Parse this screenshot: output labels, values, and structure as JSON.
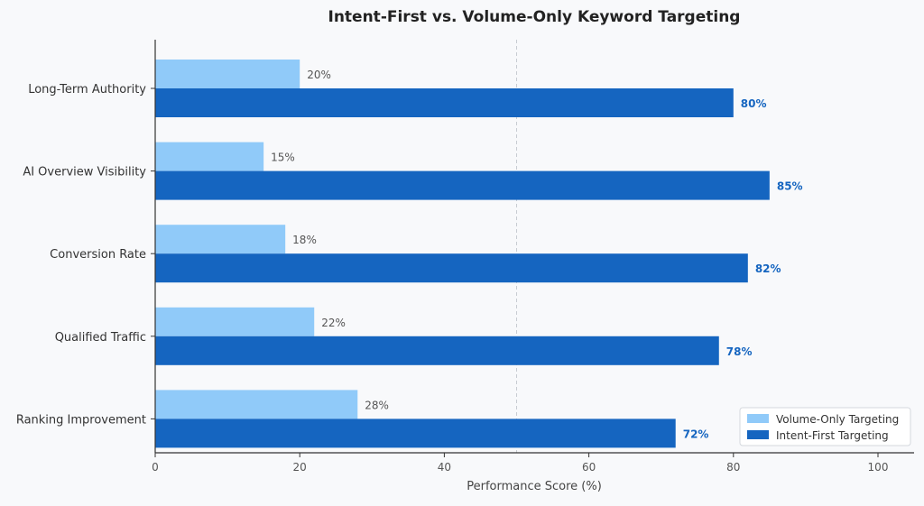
{
  "chart_data": {
    "type": "bar",
    "orientation": "horizontal",
    "title": "Intent-First vs. Volume-Only Keyword Targeting",
    "xlabel": "Performance Score (%)",
    "ylabel": "",
    "xlim": [
      0,
      100
    ],
    "xticks": [
      0,
      20,
      40,
      60,
      80,
      100
    ],
    "reference_line": 50,
    "categories": [
      "Long-Term Authority",
      "AI Overview Visibility",
      "Conversion Rate",
      "Qualified Traffic",
      "Ranking Improvement"
    ],
    "series": [
      {
        "name": "Volume-Only Targeting",
        "values": [
          20,
          15,
          18,
          22,
          28
        ],
        "labels": [
          "20%",
          "15%",
          "18%",
          "22%",
          "28%"
        ],
        "color": "#90caf9",
        "label_color": "#555555",
        "label_weight": "normal"
      },
      {
        "name": "Intent-First Targeting",
        "values": [
          80,
          85,
          82,
          78,
          72
        ],
        "labels": [
          "80%",
          "85%",
          "82%",
          "78%",
          "72%"
        ],
        "color": "#1565c0",
        "label_color": "#1565c0",
        "label_weight": "bold"
      }
    ],
    "grid": false,
    "legend_position": "bottom-right"
  }
}
